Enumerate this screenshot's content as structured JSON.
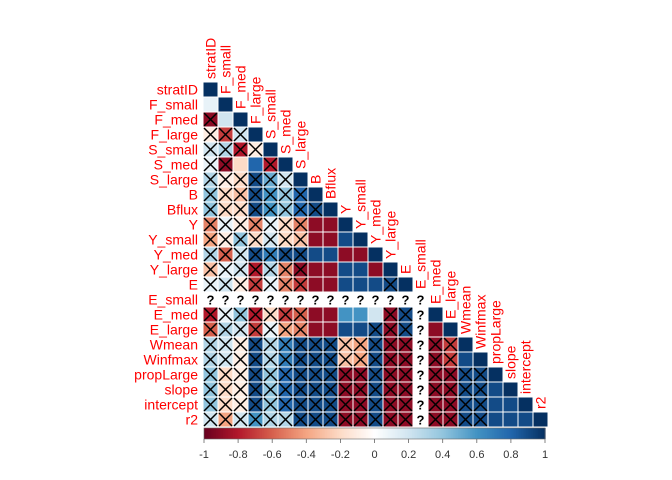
{
  "chart_data": {
    "type": "heatmap",
    "shape": "lower-triangular correlation matrix",
    "variables": [
      "stratID",
      "F_small",
      "F_med",
      "F_large",
      "S_small",
      "S_med",
      "S_large",
      "B",
      "Bflux",
      "Y",
      "Y_small",
      "Y_med",
      "Y_large",
      "E",
      "E_small",
      "E_med",
      "E_large",
      "Wmean",
      "Winfmax",
      "propLarge",
      "slope",
      "intercept",
      "r2"
    ],
    "label_color": "#ff0000",
    "colorbar": {
      "min": -1,
      "max": 1,
      "ticks": [
        -1,
        -0.8,
        -0.6,
        -0.4,
        -0.2,
        0,
        0.2,
        0.4,
        0.6,
        0.8,
        1
      ],
      "tick_labels": [
        "-1",
        "-0.8",
        "-0.6",
        "-0.4",
        "-0.2",
        "0",
        "0.2",
        "0.4",
        "0.6",
        "0.8",
        "1"
      ],
      "colors": [
        "#67001f",
        "#b2182b",
        "#d6604d",
        "#f4a582",
        "#fddbc7",
        "#ffffff",
        "#d1e5f0",
        "#92c5de",
        "#4393c3",
        "#2166ac",
        "#053061"
      ]
    },
    "missing_symbol": "?",
    "insignificant_symbol": "X",
    "missing_variable": "E_small",
    "rows": [
      {
        "var": "stratID",
        "r": [
          1
        ]
      },
      {
        "var": "F_small",
        "r": [
          0.1,
          1
        ]
      },
      {
        "var": "F_med",
        "r": [
          -0.9,
          0.2,
          1
        ]
      },
      {
        "var": "F_large",
        "r": [
          -0.1,
          -0.7,
          0.2,
          1
        ]
      },
      {
        "var": "S_small",
        "r": [
          0.2,
          0.3,
          -0.8,
          -0.1,
          1
        ]
      },
      {
        "var": "S_med",
        "r": [
          0.1,
          -0.9,
          -0.2,
          0.8,
          -0.8,
          1
        ]
      },
      {
        "var": "S_large",
        "r": [
          0.3,
          -0.1,
          -0.2,
          0.9,
          0.5,
          0.2,
          1
        ]
      },
      {
        "var": "B",
        "r": [
          0.4,
          -0.2,
          -0.3,
          0.9,
          0.6,
          0.4,
          0.8,
          1
        ]
      },
      {
        "var": "Bflux",
        "r": [
          0.4,
          -0.2,
          -0.2,
          0.9,
          0.6,
          0.4,
          0.8,
          0.9,
          1
        ]
      },
      {
        "var": "Y",
        "r": [
          -0.5,
          0.1,
          -0.1,
          -0.5,
          0.1,
          -0.2,
          -0.5,
          -0.9,
          -0.9,
          1
        ]
      },
      {
        "var": "Y_small",
        "r": [
          -0.4,
          -0.1,
          0.4,
          -0.2,
          0.2,
          -0.2,
          -0.3,
          -0.9,
          -0.9,
          0.9,
          1
        ]
      },
      {
        "var": "Y_med",
        "r": [
          0.3,
          -0.6,
          0.2,
          0.9,
          0.7,
          0.9,
          0.9,
          0.9,
          0.9,
          -0.9,
          -0.9,
          1
        ]
      },
      {
        "var": "Y_large",
        "r": [
          -0.3,
          0.1,
          0.2,
          -0.8,
          0.3,
          -0.5,
          -0.9,
          -0.9,
          -0.9,
          0.9,
          0.9,
          -0.9,
          1
        ]
      },
      {
        "var": "E",
        "r": [
          0.1,
          0.2,
          -0.1,
          -0.7,
          0.1,
          -0.5,
          -0.7,
          -0.9,
          -0.9,
          0.9,
          0.9,
          0.9,
          0.9,
          1
        ]
      },
      {
        "var": "E_small",
        "r": [
          null,
          null,
          null,
          null,
          null,
          null,
          null,
          null,
          null,
          null,
          null,
          null,
          null,
          null,
          null
        ]
      },
      {
        "var": "E_med",
        "r": [
          -0.8,
          0.1,
          0.4,
          -0.8,
          -0.2,
          -0.7,
          -0.6,
          -0.9,
          -0.9,
          0.6,
          0.6,
          0.2,
          -0.9,
          0.9,
          null,
          1
        ]
      },
      {
        "var": "E_large",
        "r": [
          -0.6,
          0.3,
          0.2,
          -0.7,
          0.1,
          -0.4,
          -0.5,
          -0.9,
          -0.9,
          0.9,
          0.9,
          0.9,
          -0.9,
          0.9,
          null,
          -0.9,
          1
        ]
      },
      {
        "var": "Wmean",
        "r": [
          0.3,
          0.2,
          -0.1,
          0.9,
          0.3,
          0.7,
          0.9,
          0.9,
          0.9,
          -0.3,
          -0.4,
          0.9,
          -0.9,
          -0.9,
          null,
          -0.9,
          -0.7,
          1
        ]
      },
      {
        "var": "Winfmax",
        "r": [
          0.3,
          0.2,
          -0.1,
          0.9,
          0.3,
          0.7,
          0.9,
          0.9,
          0.9,
          -0.3,
          -0.4,
          0.9,
          -0.9,
          -0.9,
          null,
          -0.9,
          -0.7,
          0.9,
          1
        ]
      },
      {
        "var": "propLarge",
        "r": [
          0.4,
          -0.2,
          -0.1,
          0.9,
          0.4,
          0.8,
          0.9,
          0.9,
          0.9,
          -0.9,
          -0.9,
          0.9,
          -0.9,
          -0.9,
          null,
          -0.9,
          -0.9,
          0.9,
          0.9,
          1
        ]
      },
      {
        "var": "slope",
        "r": [
          0.4,
          -0.2,
          -0.1,
          0.9,
          0.4,
          0.8,
          0.9,
          0.9,
          0.9,
          -0.9,
          -0.9,
          0.9,
          -0.9,
          -0.9,
          null,
          -0.9,
          -0.9,
          0.9,
          0.9,
          0.9,
          1
        ]
      },
      {
        "var": "intercept",
        "r": [
          0.4,
          -0.2,
          -0.1,
          0.9,
          0.4,
          0.8,
          0.9,
          0.9,
          0.9,
          -0.9,
          -0.9,
          0.9,
          -0.9,
          -0.9,
          null,
          -0.9,
          -0.9,
          0.9,
          0.9,
          0.9,
          0.9,
          1
        ]
      },
      {
        "var": "r2",
        "r": [
          0.2,
          -0.4,
          0.2,
          0.6,
          0.3,
          0.3,
          0.9,
          0.9,
          0.9,
          -0.9,
          -0.9,
          0.9,
          -0.9,
          -0.9,
          null,
          -0.9,
          -0.9,
          0.9,
          0.9,
          0.9,
          0.9,
          0.9,
          1
        ]
      }
    ],
    "insignificant": [
      [
        2,
        0
      ],
      [
        3,
        0
      ],
      [
        4,
        0
      ],
      [
        5,
        0
      ],
      [
        6,
        0
      ],
      [
        7,
        0
      ],
      [
        8,
        0
      ],
      [
        9,
        0
      ],
      [
        10,
        0
      ],
      [
        11,
        0
      ],
      [
        12,
        0
      ],
      [
        13,
        0
      ],
      [
        15,
        0
      ],
      [
        16,
        0
      ],
      [
        17,
        0
      ],
      [
        18,
        0
      ],
      [
        19,
        0
      ],
      [
        20,
        0
      ],
      [
        21,
        0
      ],
      [
        22,
        0
      ],
      [
        3,
        1
      ],
      [
        4,
        1
      ],
      [
        5,
        1
      ],
      [
        6,
        1
      ],
      [
        7,
        1
      ],
      [
        8,
        1
      ],
      [
        9,
        1
      ],
      [
        10,
        1
      ],
      [
        11,
        1
      ],
      [
        12,
        1
      ],
      [
        13,
        1
      ],
      [
        15,
        1
      ],
      [
        16,
        1
      ],
      [
        17,
        1
      ],
      [
        18,
        1
      ],
      [
        19,
        1
      ],
      [
        20,
        1
      ],
      [
        21,
        1
      ],
      [
        22,
        1
      ],
      [
        3,
        2
      ],
      [
        4,
        2
      ],
      [
        6,
        2
      ],
      [
        7,
        2
      ],
      [
        8,
        2
      ],
      [
        9,
        2
      ],
      [
        10,
        2
      ],
      [
        11,
        2
      ],
      [
        12,
        2
      ],
      [
        13,
        2
      ],
      [
        15,
        2
      ],
      [
        16,
        2
      ],
      [
        17,
        2
      ],
      [
        18,
        2
      ],
      [
        19,
        2
      ],
      [
        20,
        2
      ],
      [
        21,
        2
      ],
      [
        22,
        2
      ],
      [
        4,
        3
      ],
      [
        6,
        3
      ],
      [
        7,
        3
      ],
      [
        8,
        3
      ],
      [
        9,
        3
      ],
      [
        10,
        3
      ],
      [
        11,
        3
      ],
      [
        12,
        3
      ],
      [
        13,
        3
      ],
      [
        15,
        3
      ],
      [
        16,
        3
      ],
      [
        17,
        3
      ],
      [
        18,
        3
      ],
      [
        19,
        3
      ],
      [
        20,
        3
      ],
      [
        21,
        3
      ],
      [
        22,
        3
      ],
      [
        5,
        4
      ],
      [
        6,
        4
      ],
      [
        7,
        4
      ],
      [
        8,
        4
      ],
      [
        9,
        4
      ],
      [
        10,
        4
      ],
      [
        11,
        4
      ],
      [
        12,
        4
      ],
      [
        13,
        4
      ],
      [
        15,
        4
      ],
      [
        16,
        4
      ],
      [
        17,
        4
      ],
      [
        18,
        4
      ],
      [
        19,
        4
      ],
      [
        20,
        4
      ],
      [
        21,
        4
      ],
      [
        22,
        4
      ],
      [
        6,
        5
      ],
      [
        7,
        5
      ],
      [
        8,
        5
      ],
      [
        9,
        5
      ],
      [
        10,
        5
      ],
      [
        11,
        5
      ],
      [
        12,
        5
      ],
      [
        13,
        5
      ],
      [
        15,
        5
      ],
      [
        16,
        5
      ],
      [
        17,
        5
      ],
      [
        18,
        5
      ],
      [
        19,
        5
      ],
      [
        20,
        5
      ],
      [
        21,
        5
      ],
      [
        22,
        5
      ],
      [
        7,
        6
      ],
      [
        8,
        6
      ],
      [
        9,
        6
      ],
      [
        10,
        6
      ],
      [
        11,
        6
      ],
      [
        12,
        6
      ],
      [
        13,
        6
      ],
      [
        15,
        6
      ],
      [
        16,
        6
      ],
      [
        17,
        6
      ],
      [
        18,
        6
      ],
      [
        19,
        6
      ],
      [
        20,
        6
      ],
      [
        21,
        6
      ],
      [
        22,
        6
      ],
      [
        8,
        7
      ],
      [
        17,
        7
      ],
      [
        18,
        7
      ],
      [
        19,
        7
      ],
      [
        20,
        7
      ],
      [
        21,
        7
      ],
      [
        22,
        7
      ],
      [
        17,
        8
      ],
      [
        18,
        8
      ],
      [
        19,
        8
      ],
      [
        20,
        8
      ],
      [
        21,
        8
      ],
      [
        22,
        8
      ],
      [
        17,
        9
      ],
      [
        18,
        9
      ],
      [
        19,
        9
      ],
      [
        20,
        9
      ],
      [
        21,
        9
      ],
      [
        22,
        9
      ],
      [
        17,
        10
      ],
      [
        18,
        10
      ],
      [
        19,
        10
      ],
      [
        20,
        10
      ],
      [
        21,
        10
      ],
      [
        22,
        10
      ],
      [
        16,
        11
      ],
      [
        17,
        11
      ],
      [
        18,
        11
      ],
      [
        19,
        11
      ],
      [
        20,
        11
      ],
      [
        21,
        11
      ],
      [
        22,
        11
      ],
      [
        13,
        12
      ],
      [
        15,
        12
      ],
      [
        16,
        12
      ],
      [
        17,
        12
      ],
      [
        18,
        12
      ],
      [
        19,
        12
      ],
      [
        20,
        12
      ],
      [
        21,
        12
      ],
      [
        22,
        12
      ],
      [
        15,
        13
      ],
      [
        16,
        13
      ],
      [
        17,
        13
      ],
      [
        18,
        13
      ],
      [
        19,
        13
      ],
      [
        20,
        13
      ],
      [
        21,
        13
      ],
      [
        22,
        13
      ],
      [
        17,
        15
      ],
      [
        18,
        15
      ],
      [
        19,
        15
      ],
      [
        20,
        15
      ],
      [
        21,
        15
      ],
      [
        22,
        15
      ],
      [
        17,
        16
      ],
      [
        18,
        16
      ],
      [
        19,
        16
      ],
      [
        20,
        16
      ],
      [
        21,
        16
      ],
      [
        22,
        16
      ],
      [
        19,
        17
      ],
      [
        20,
        17
      ],
      [
        21,
        17
      ],
      [
        22,
        17
      ],
      [
        19,
        18
      ],
      [
        20,
        18
      ],
      [
        21,
        18
      ],
      [
        22,
        18
      ]
    ]
  }
}
